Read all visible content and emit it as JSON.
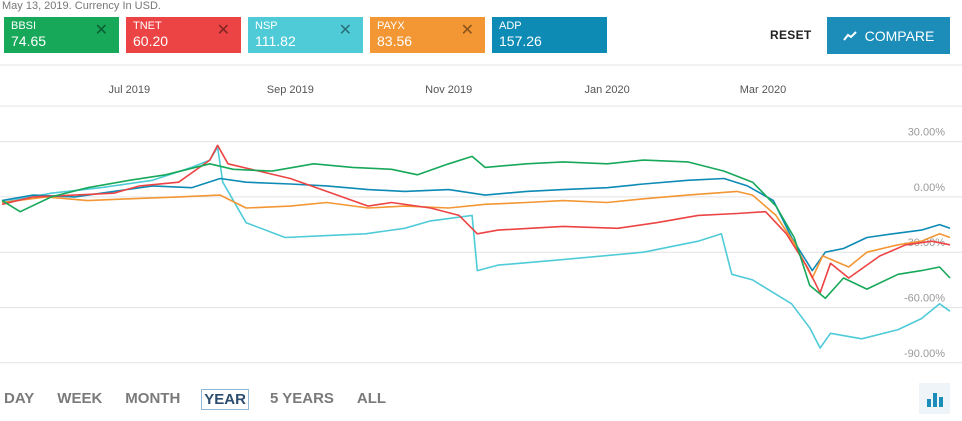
{
  "subtitle": "May 13, 2019. Currency In USD.",
  "tickers": [
    {
      "symbol": "BBSI",
      "price": "74.65",
      "color": "#17a85a"
    },
    {
      "symbol": "TNET",
      "price": "60.20",
      "color": "#ec4444"
    },
    {
      "symbol": "NSP",
      "price": "111.82",
      "color": "#4fcbd8"
    },
    {
      "symbol": "PAYX",
      "price": "83.56",
      "color": "#f39634"
    },
    {
      "symbol": "ADP",
      "price": "157.26",
      "color": "#0d8bb5"
    }
  ],
  "close_icon": "close-icon",
  "reset_label": "RESET",
  "compare_label": "COMPARE",
  "compare_icon": "trend-line-icon",
  "ranges": [
    "DAY",
    "WEEK",
    "MONTH",
    "YEAR",
    "5 YEARS",
    "ALL"
  ],
  "active_range": "YEAR",
  "chart_type_icon": "bar-chart-icon",
  "chart_data": {
    "type": "line",
    "x_range": [
      "2019-05-13",
      "2020-05-12"
    ],
    "x_ticks": [
      {
        "date": "2019-07-01",
        "label": "Jul 2019"
      },
      {
        "date": "2019-09-01",
        "label": "Sep 2019"
      },
      {
        "date": "2019-11-01",
        "label": "Nov 2019"
      },
      {
        "date": "2020-01-01",
        "label": "Jan 2020"
      },
      {
        "date": "2020-03-01",
        "label": "Mar 2020"
      }
    ],
    "y_ticks": [
      {
        "value": 30,
        "label": "30.00%"
      },
      {
        "value": 0,
        "label": "0.00%"
      },
      {
        "value": -30,
        "label": "-30.00%"
      },
      {
        "value": -60,
        "label": "-60.00%"
      },
      {
        "value": -90,
        "label": "-90.00%"
      }
    ],
    "ylim": [
      -95,
      45
    ],
    "grid": true,
    "series": [
      {
        "name": "NSP",
        "color": "#4fcbd8",
        "points": [
          [
            "2019-05-13",
            -3
          ],
          [
            "2019-06-01",
            2
          ],
          [
            "2019-06-20",
            5
          ],
          [
            "2019-07-10",
            9
          ],
          [
            "2019-07-25",
            16
          ],
          [
            "2019-08-01",
            20
          ],
          [
            "2019-08-04",
            27
          ],
          [
            "2019-08-06",
            8
          ],
          [
            "2019-08-15",
            -14
          ],
          [
            "2019-08-30",
            -22
          ],
          [
            "2019-09-15",
            -21
          ],
          [
            "2019-09-30",
            -20
          ],
          [
            "2019-10-15",
            -17
          ],
          [
            "2019-10-25",
            -13
          ],
          [
            "2019-11-10",
            -10
          ],
          [
            "2019-11-12",
            -40
          ],
          [
            "2019-11-20",
            -37
          ],
          [
            "2019-12-15",
            -34
          ],
          [
            "2020-01-15",
            -30
          ],
          [
            "2020-02-05",
            -24
          ],
          [
            "2020-02-14",
            -20
          ],
          [
            "2020-02-18",
            -42
          ],
          [
            "2020-02-26",
            -45
          ],
          [
            "2020-03-12",
            -58
          ],
          [
            "2020-03-19",
            -71
          ],
          [
            "2020-03-23",
            -82
          ],
          [
            "2020-03-27",
            -74
          ],
          [
            "2020-04-08",
            -77
          ],
          [
            "2020-04-22",
            -72
          ],
          [
            "2020-05-01",
            -66
          ],
          [
            "2020-05-08",
            -58
          ],
          [
            "2020-05-12",
            -62
          ]
        ]
      },
      {
        "name": "ADP",
        "color": "#0d8bb5",
        "points": [
          [
            "2019-05-13",
            -2
          ],
          [
            "2019-05-25",
            1
          ],
          [
            "2019-06-10",
            0
          ],
          [
            "2019-06-25",
            3
          ],
          [
            "2019-07-10",
            6
          ],
          [
            "2019-07-25",
            5
          ],
          [
            "2019-08-05",
            10
          ],
          [
            "2019-08-15",
            8
          ],
          [
            "2019-09-01",
            7
          ],
          [
            "2019-09-15",
            6
          ],
          [
            "2019-10-01",
            4
          ],
          [
            "2019-10-15",
            3
          ],
          [
            "2019-11-01",
            4
          ],
          [
            "2019-11-15",
            1
          ],
          [
            "2019-12-01",
            3
          ],
          [
            "2019-12-15",
            4
          ],
          [
            "2020-01-01",
            5
          ],
          [
            "2020-01-15",
            7
          ],
          [
            "2020-02-01",
            9
          ],
          [
            "2020-02-15",
            10
          ],
          [
            "2020-02-24",
            6
          ],
          [
            "2020-03-05",
            -2
          ],
          [
            "2020-03-12",
            -22
          ],
          [
            "2020-03-20",
            -40
          ],
          [
            "2020-03-25",
            -30
          ],
          [
            "2020-04-01",
            -28
          ],
          [
            "2020-04-10",
            -22
          ],
          [
            "2020-04-20",
            -20
          ],
          [
            "2020-05-01",
            -18
          ],
          [
            "2020-05-08",
            -15
          ],
          [
            "2020-05-12",
            -17
          ]
        ]
      },
      {
        "name": "PAYX",
        "color": "#f39634",
        "points": [
          [
            "2019-05-13",
            -3
          ],
          [
            "2019-05-30",
            0
          ],
          [
            "2019-06-15",
            -2
          ],
          [
            "2019-07-01",
            -1
          ],
          [
            "2019-07-20",
            0
          ],
          [
            "2019-08-05",
            1
          ],
          [
            "2019-08-15",
            -6
          ],
          [
            "2019-09-01",
            -5
          ],
          [
            "2019-09-15",
            -3
          ],
          [
            "2019-10-01",
            -6
          ],
          [
            "2019-10-15",
            -5
          ],
          [
            "2019-11-01",
            -6
          ],
          [
            "2019-11-15",
            -4
          ],
          [
            "2019-12-01",
            -3
          ],
          [
            "2019-12-15",
            -2
          ],
          [
            "2020-01-01",
            -3
          ],
          [
            "2020-01-15",
            -1
          ],
          [
            "2020-02-01",
            1
          ],
          [
            "2020-02-20",
            3
          ],
          [
            "2020-02-26",
            1
          ],
          [
            "2020-03-06",
            -10
          ],
          [
            "2020-03-13",
            -25
          ],
          [
            "2020-03-20",
            -44
          ],
          [
            "2020-03-24",
            -32
          ],
          [
            "2020-04-03",
            -38
          ],
          [
            "2020-04-10",
            -30
          ],
          [
            "2020-04-22",
            -26
          ],
          [
            "2020-05-01",
            -24
          ],
          [
            "2020-05-08",
            -20
          ],
          [
            "2020-05-12",
            -22
          ]
        ]
      },
      {
        "name": "TNET",
        "color": "#ec4444",
        "points": [
          [
            "2019-05-13",
            -4
          ],
          [
            "2019-05-25",
            0
          ],
          [
            "2019-06-10",
            1
          ],
          [
            "2019-06-25",
            2
          ],
          [
            "2019-07-05",
            6
          ],
          [
            "2019-07-20",
            8
          ],
          [
            "2019-08-01",
            20
          ],
          [
            "2019-08-04",
            28
          ],
          [
            "2019-08-08",
            18
          ],
          [
            "2019-08-20",
            14
          ],
          [
            "2019-09-01",
            10
          ],
          [
            "2019-09-15",
            3
          ],
          [
            "2019-10-01",
            -5
          ],
          [
            "2019-10-10",
            -3
          ],
          [
            "2019-10-25",
            -6
          ],
          [
            "2019-11-05",
            -10
          ],
          [
            "2019-11-12",
            -20
          ],
          [
            "2019-11-20",
            -18
          ],
          [
            "2019-12-15",
            -16
          ],
          [
            "2020-01-05",
            -17
          ],
          [
            "2020-01-20",
            -14
          ],
          [
            "2020-02-05",
            -10
          ],
          [
            "2020-02-20",
            -9
          ],
          [
            "2020-03-02",
            -8
          ],
          [
            "2020-03-10",
            -20
          ],
          [
            "2020-03-18",
            -38
          ],
          [
            "2020-03-23",
            -52
          ],
          [
            "2020-03-27",
            -36
          ],
          [
            "2020-04-03",
            -44
          ],
          [
            "2020-04-15",
            -32
          ],
          [
            "2020-04-25",
            -26
          ],
          [
            "2020-05-05",
            -24
          ],
          [
            "2020-05-12",
            -26
          ]
        ]
      },
      {
        "name": "BBSI",
        "color": "#17a85a",
        "points": [
          [
            "2019-05-13",
            -2
          ],
          [
            "2019-05-20",
            -8
          ],
          [
            "2019-06-01",
            0
          ],
          [
            "2019-06-15",
            5
          ],
          [
            "2019-07-01",
            9
          ],
          [
            "2019-07-15",
            12
          ],
          [
            "2019-08-01",
            18
          ],
          [
            "2019-08-10",
            15
          ],
          [
            "2019-08-25",
            14
          ],
          [
            "2019-09-10",
            18
          ],
          [
            "2019-09-25",
            16
          ],
          [
            "2019-10-10",
            15
          ],
          [
            "2019-10-20",
            12
          ],
          [
            "2019-11-01",
            18
          ],
          [
            "2019-11-10",
            22
          ],
          [
            "2019-11-15",
            16
          ],
          [
            "2019-12-01",
            18
          ],
          [
            "2019-12-15",
            19
          ],
          [
            "2020-01-01",
            18
          ],
          [
            "2020-01-15",
            20
          ],
          [
            "2020-02-01",
            19
          ],
          [
            "2020-02-15",
            14
          ],
          [
            "2020-02-26",
            8
          ],
          [
            "2020-03-06",
            -5
          ],
          [
            "2020-03-13",
            -22
          ],
          [
            "2020-03-19",
            -48
          ],
          [
            "2020-03-25",
            -55
          ],
          [
            "2020-04-01",
            -44
          ],
          [
            "2020-04-10",
            -50
          ],
          [
            "2020-04-22",
            -42
          ],
          [
            "2020-05-01",
            -40
          ],
          [
            "2020-05-08",
            -38
          ],
          [
            "2020-05-12",
            -44
          ]
        ]
      }
    ]
  }
}
